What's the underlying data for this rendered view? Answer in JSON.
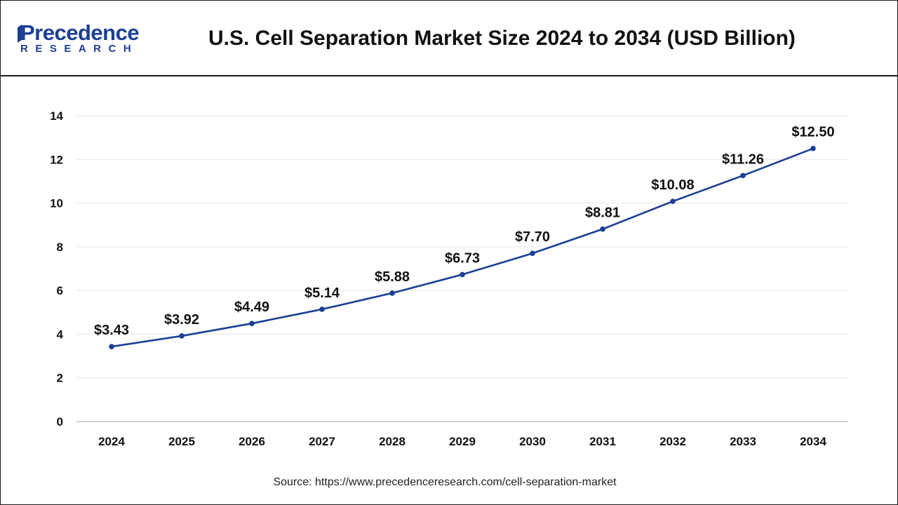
{
  "header": {
    "logo_word": "Precedence",
    "logo_sub": "RESEARCH",
    "title": "U.S. Cell Separation Market Size 2024 to 2034 (USD Billion)"
  },
  "colors": {
    "line": "#1c3f94",
    "brand": "#1c3f94",
    "grid": "#e6e6e6",
    "text": "#111111"
  },
  "chart_data": {
    "type": "line",
    "title": "U.S. Cell Separation Market Size 2024 to 2034 (USD Billion)",
    "xlabel": "",
    "ylabel": "",
    "categories": [
      "2024",
      "2025",
      "2026",
      "2027",
      "2028",
      "2029",
      "2030",
      "2031",
      "2032",
      "2033",
      "2034"
    ],
    "series": [
      {
        "name": "U.S. Cell Separation Market Size",
        "values": [
          3.43,
          3.92,
          4.49,
          5.14,
          5.88,
          6.73,
          7.7,
          8.81,
          10.08,
          11.26,
          12.5
        ],
        "labels": [
          "$3.43",
          "$3.92",
          "$4.49",
          "$5.14",
          "$5.88",
          "$6.73",
          "$7.70",
          "$8.81",
          "$10.08",
          "$11.26",
          "$12.50"
        ]
      }
    ],
    "ylim": [
      0,
      14
    ],
    "yticks": [
      0,
      2,
      4,
      6,
      8,
      10,
      12,
      14
    ],
    "grid": true,
    "legend": "none"
  },
  "footer": {
    "source": "Source: https://www.precedenceresearch.com/cell-separation-market"
  }
}
